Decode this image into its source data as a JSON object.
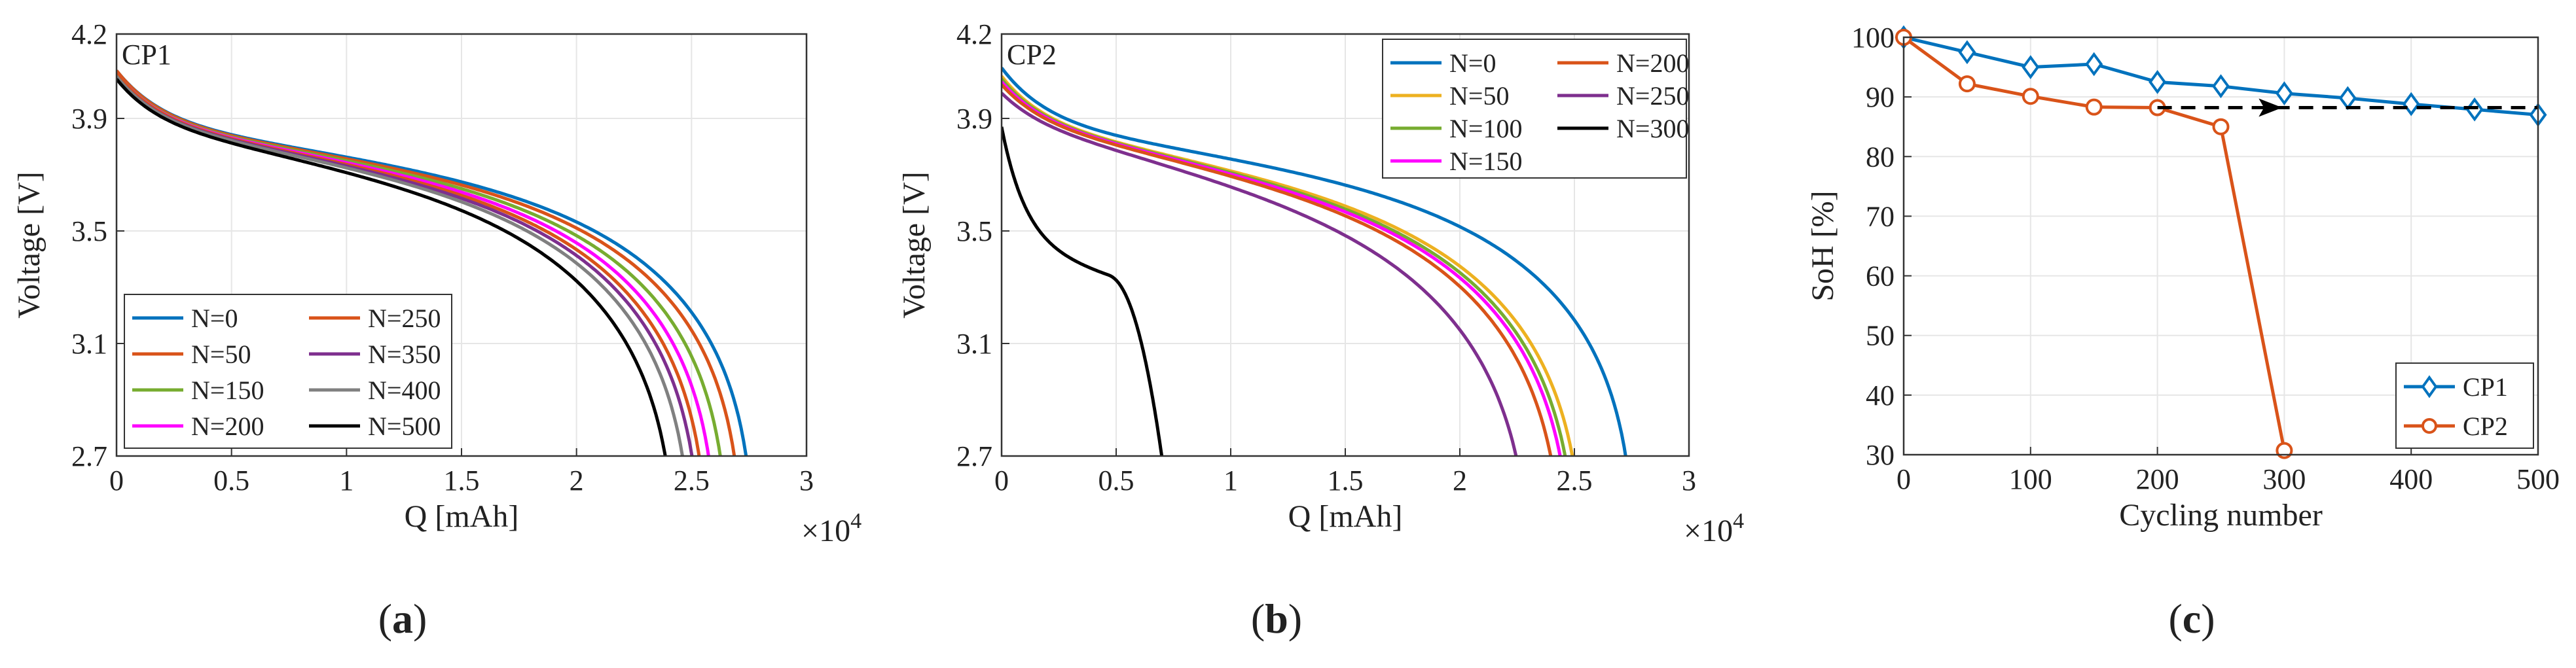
{
  "chart_data": [
    {
      "type": "line",
      "panel": "a",
      "caption_letter": "a",
      "tag": "CP1",
      "xlabel": "Q [mAh]",
      "ylabel": "Voltage [V]",
      "x_multiplier": "×10",
      "x_multiplier_exp": "4",
      "xlim": [
        0,
        3
      ],
      "ylim": [
        2.7,
        4.2
      ],
      "xticks": [
        0,
        0.5,
        1,
        1.5,
        2,
        2.5,
        3
      ],
      "xtick_labels": [
        "0",
        "0.5",
        "1",
        "1.5",
        "2",
        "2.5",
        "3"
      ],
      "yticks": [
        2.7,
        3.1,
        3.5,
        3.9,
        4.2
      ],
      "ytick_labels": [
        "2.7",
        "3.1",
        "3.5",
        "3.9",
        "4.2"
      ],
      "grid": true,
      "legend_position": "bottom-left",
      "legend_columns": 2,
      "series": [
        {
          "name": "N=0",
          "color": "#0072BD",
          "capacity": 2.78,
          "v0": 4.07,
          "vknee": 3.52
        },
        {
          "name": "N=50",
          "color": "#D95319",
          "capacity": 2.73,
          "v0": 4.07,
          "vknee": 3.51
        },
        {
          "name": "N=150",
          "color": "#77AC30",
          "capacity": 2.67,
          "v0": 4.06,
          "vknee": 3.5
        },
        {
          "name": "N=200",
          "color": "#FF00FF",
          "capacity": 2.62,
          "v0": 4.06,
          "vknee": 3.49
        },
        {
          "name": "N=250",
          "color": "#D95319",
          "capacity": 2.58,
          "v0": 4.06,
          "vknee": 3.48
        },
        {
          "name": "N=350",
          "color": "#7E2F8E",
          "capacity": 2.55,
          "v0": 4.05,
          "vknee": 3.47
        },
        {
          "name": "N=400",
          "color": "#808080",
          "capacity": 2.51,
          "v0": 4.05,
          "vknee": 3.46
        },
        {
          "name": "N=500",
          "color": "#000000",
          "capacity": 2.44,
          "v0": 4.04,
          "vknee": 3.43
        }
      ]
    },
    {
      "type": "line",
      "panel": "b",
      "caption_letter": "b",
      "tag": "CP2",
      "xlabel": "Q [mAh]",
      "ylabel": "Voltage [V]",
      "x_multiplier": "×10",
      "x_multiplier_exp": "4",
      "xlim": [
        0,
        3
      ],
      "ylim": [
        2.7,
        4.2
      ],
      "xticks": [
        0,
        0.5,
        1,
        1.5,
        2,
        2.5,
        3
      ],
      "xtick_labels": [
        "0",
        "0.5",
        "1",
        "1.5",
        "2",
        "2.5",
        "3"
      ],
      "yticks": [
        2.7,
        3.1,
        3.5,
        3.9,
        4.2
      ],
      "ytick_labels": [
        "2.7",
        "3.1",
        "3.5",
        "3.9",
        "4.2"
      ],
      "grid": true,
      "legend_position": "top-right",
      "legend_columns": 2,
      "series": [
        {
          "name": "N=0",
          "color": "#0072BD",
          "capacity": 2.77,
          "v0": 4.08,
          "vknee": 3.5
        },
        {
          "name": "N=50",
          "color": "#EDB120",
          "capacity": 2.55,
          "v0": 4.05,
          "vknee": 3.42
        },
        {
          "name": "N=100",
          "color": "#77AC30",
          "capacity": 2.52,
          "v0": 4.04,
          "vknee": 3.41
        },
        {
          "name": "N=150",
          "color": "#FF00FF",
          "capacity": 2.5,
          "v0": 4.03,
          "vknee": 3.4
        },
        {
          "name": "N=200",
          "color": "#D95319",
          "capacity": 2.46,
          "v0": 4.02,
          "vknee": 3.39
        },
        {
          "name": "N=250",
          "color": "#7E2F8E",
          "capacity": 2.32,
          "v0": 3.99,
          "vknee": 3.33
        },
        {
          "name": "N=300",
          "color": "#000000",
          "capacity": 0.75,
          "v0": 3.87,
          "vknee": 3.3
        }
      ]
    },
    {
      "type": "line",
      "panel": "c",
      "caption_letter": "c",
      "xlabel": "Cycling number",
      "ylabel": "SoH [%]",
      "xlim": [
        0,
        500
      ],
      "ylim": [
        30,
        100
      ],
      "xticks": [
        0,
        100,
        200,
        300,
        400,
        500
      ],
      "xtick_labels": [
        "0",
        "100",
        "200",
        "300",
        "400",
        "500"
      ],
      "yticks": [
        30,
        40,
        50,
        60,
        70,
        80,
        90,
        100
      ],
      "ytick_labels": [
        "30",
        "40",
        "50",
        "60",
        "70",
        "80",
        "90",
        "100"
      ],
      "grid": true,
      "legend_position": "bottom-right",
      "series": [
        {
          "name": "CP1",
          "color": "#0072BD",
          "marker": "diamond",
          "x": [
            0,
            50,
            100,
            150,
            200,
            250,
            300,
            350,
            400,
            450,
            500
          ],
          "y": [
            100,
            97.5,
            95,
            95.5,
            92.5,
            91.8,
            90.6,
            89.8,
            88.8,
            87.9,
            87.0
          ]
        },
        {
          "name": "CP2",
          "color": "#D95319",
          "marker": "circle",
          "x": [
            0,
            50,
            100,
            150,
            200,
            250,
            300
          ],
          "y": [
            100,
            92.2,
            90.1,
            88.3,
            88.2,
            85.0,
            30.7
          ]
        }
      ],
      "annotations": [
        {
          "type": "dashed-arrow",
          "color": "#000000",
          "from": [
            200,
            88.2
          ],
          "to": [
            500,
            88.2
          ]
        }
      ]
    }
  ]
}
